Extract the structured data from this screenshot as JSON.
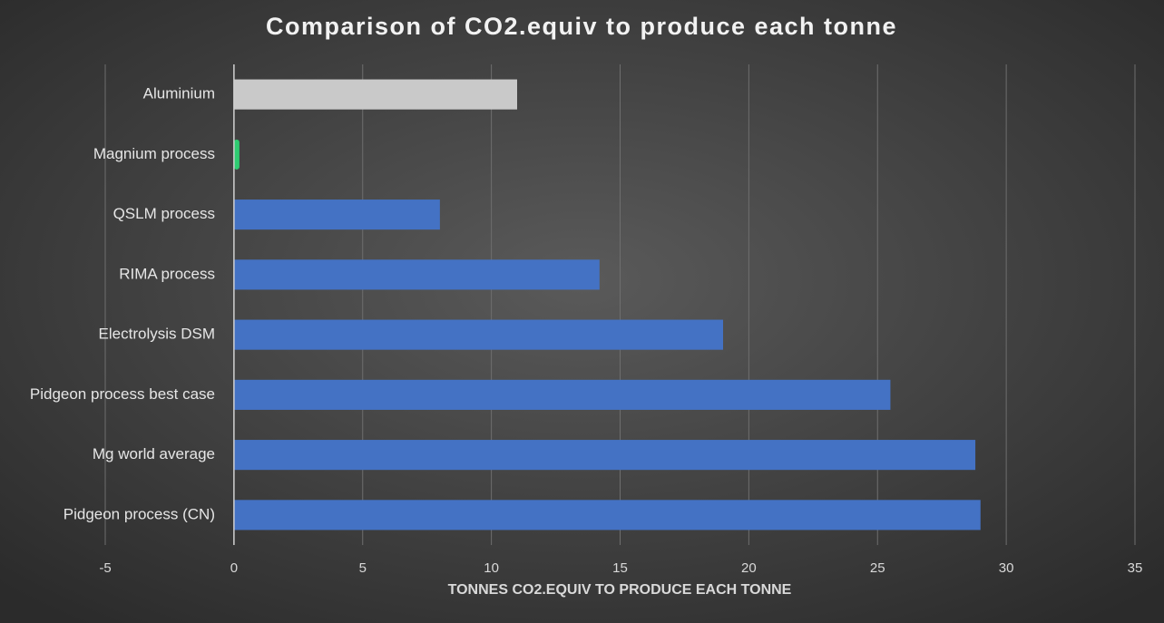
{
  "chart_data": {
    "type": "hbar",
    "title": "Comparison of CO2.equiv to produce each tonne",
    "x_label": "TONNES CO2.EQUIV TO PRODUCE EACH TONNE",
    "categories": [
      "Aluminium",
      "Magnium process",
      "QSLM process",
      "RIMA process",
      "Electrolysis DSM",
      "Pidgeon process best case",
      "Mg world average",
      "Pidgeon process (CN)"
    ],
    "values": [
      11.0,
      0.1,
      8.0,
      14.2,
      19.0,
      25.5,
      28.8,
      29.0
    ],
    "colors": [
      "#c9c9c9",
      "#2ecc71",
      "#4472c4",
      "#4472c4",
      "#4472c4",
      "#4472c4",
      "#4472c4",
      "#4472c4"
    ],
    "xlim": [
      -5,
      35
    ],
    "xticks": [
      -5,
      0,
      5,
      10,
      15,
      20,
      25,
      30,
      35
    ],
    "grid": true
  }
}
